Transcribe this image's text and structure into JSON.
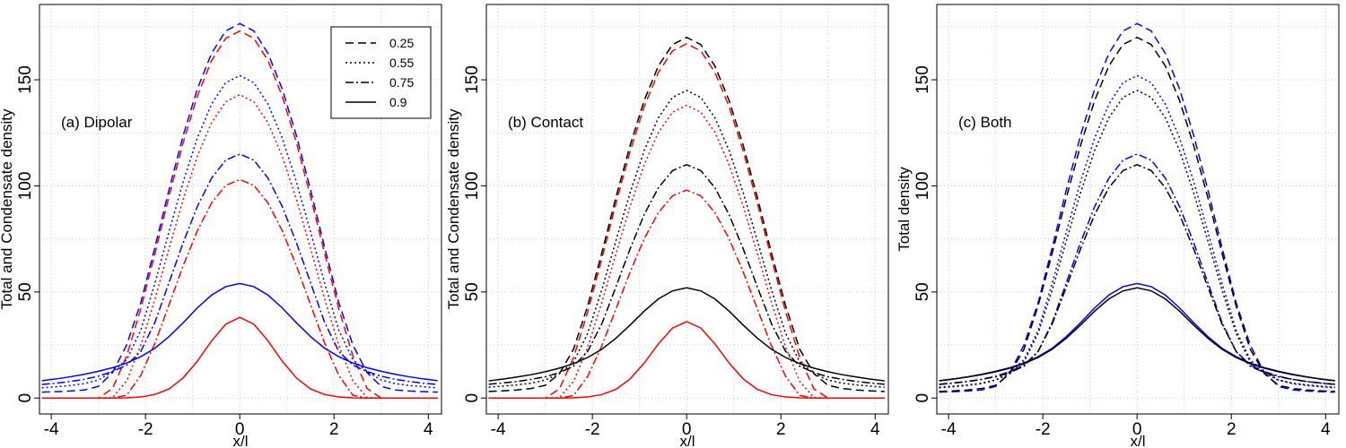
{
  "chart_data": [
    {
      "type": "line",
      "annotation": "(a) Dipolar",
      "ylabel": "Total and Condensate density",
      "xlabel": "x/l",
      "x": [
        -4.2,
        -3.9,
        -3.6,
        -3.3,
        -3.0,
        -2.7,
        -2.4,
        -2.1,
        -1.8,
        -1.5,
        -1.2,
        -0.9,
        -0.6,
        -0.3,
        0,
        0.3,
        0.6,
        0.9,
        1.2,
        1.5,
        1.8,
        2.1,
        2.4,
        2.7,
        3.0,
        3.3,
        3.6,
        3.9,
        4.2
      ],
      "xlim": [
        -4.25,
        4.28
      ],
      "ylim": [
        -7.5,
        185.5
      ],
      "xticks": [
        -4,
        -2,
        0,
        2,
        4
      ],
      "yticks": [
        0,
        50,
        100,
        150
      ],
      "xgrid": [
        -4,
        -3,
        -2,
        -1,
        0,
        1,
        2,
        3,
        4
      ],
      "ygrid": [
        0,
        25,
        50,
        75,
        100,
        125,
        150,
        175
      ],
      "legend": {
        "corner": "top right",
        "entries": [
          {
            "label": "0.25",
            "dash": "dashed",
            "color": "#000000"
          },
          {
            "label": "0.55",
            "dash": "dotted",
            "color": "#000000"
          },
          {
            "label": "0.75",
            "dash": "dashdot",
            "color": "#000000"
          },
          {
            "label": "0.9",
            "dash": "solid",
            "color": "#000000"
          }
        ]
      },
      "series": [
        {
          "color": "#ff0000",
          "dash": "dashed",
          "values": [
            0,
            0,
            0,
            0,
            0,
            4.5,
            19.8,
            42.1,
            68.1,
            95.1,
            120.5,
            142.3,
            159.0,
            169.5,
            173,
            169.5,
            159.0,
            142.3,
            120.5,
            95.1,
            68.1,
            42.1,
            19.8,
            4.5,
            0,
            0,
            0,
            0,
            0
          ]
        },
        {
          "color": "#ff0000",
          "dash": "dotted",
          "values": [
            0,
            0,
            0,
            0,
            0,
            0.2,
            8.1,
            24.9,
            46.7,
            70.6,
            93.7,
            114.0,
            129.7,
            139.6,
            143,
            139.6,
            129.7,
            114.0,
            93.7,
            70.6,
            46.7,
            24.9,
            8.1,
            0.2,
            0,
            0,
            0,
            0,
            0
          ]
        },
        {
          "color": "#ff0000",
          "dash": "dashdot",
          "values": [
            0,
            0,
            0,
            0,
            0,
            0,
            1.3,
            10.7,
            25.9,
            44.1,
            62.4,
            78.9,
            91.9,
            100.2,
            103,
            100.2,
            91.9,
            78.9,
            62.4,
            44.1,
            25.9,
            10.7,
            1.3,
            0,
            0,
            0,
            0,
            0,
            0
          ]
        },
        {
          "color": "#ff0000",
          "dash": "solid",
          "values": [
            0,
            0,
            0,
            0,
            0,
            0,
            0.1,
            0.5,
            1.7,
            4.3,
            9.5,
            17.4,
            26.9,
            34.8,
            38,
            34.8,
            26.9,
            17.4,
            9.5,
            4.3,
            1.7,
            0.5,
            0.1,
            0,
            0,
            0,
            0,
            0,
            0
          ]
        },
        {
          "color": "#0000ff",
          "dash": "dashed",
          "values": [
            2.8,
            3.0,
            3.3,
            3.8,
            5.5,
            12,
            25,
            45.0,
            71.1,
            98.3,
            123.8,
            145.7,
            162.4,
            173.0,
            176.5,
            173.0,
            162.4,
            145.7,
            123.8,
            98.3,
            71.1,
            45.0,
            25,
            12,
            5.5,
            3.8,
            3.3,
            3.0,
            2.8
          ]
        },
        {
          "color": "#0000ff",
          "dash": "dotted",
          "values": [
            4.8,
            5.3,
            5.9,
            6.8,
            8.5,
            12.5,
            18,
            32.0,
            54.2,
            78.5,
            102.0,
            122.6,
            138.5,
            148.6,
            152,
            148.6,
            138.5,
            122.6,
            102.0,
            78.5,
            54.2,
            32.0,
            18,
            12.5,
            8.5,
            6.8,
            5.9,
            5.3,
            4.8
          ]
        },
        {
          "color": "#0000ff",
          "dash": "dashdot",
          "values": [
            6.4,
            7.0,
            7.8,
            8.8,
            10.3,
            12.5,
            15.5,
            22,
            35.7,
            54.5,
            73.3,
            90.3,
            103.6,
            112.1,
            115,
            112.1,
            103.6,
            90.3,
            73.3,
            54.5,
            35.7,
            22,
            15.5,
            12.5,
            10.3,
            8.8,
            7.8,
            7.0,
            6.4
          ]
        },
        {
          "color": "#0000ff",
          "dash": "solid",
          "values": [
            8.2,
            9.0,
            10.0,
            11.2,
            12.6,
            14.3,
            16.5,
            19.5,
            23.5,
            29,
            35.5,
            42.5,
            48.5,
            52.5,
            54,
            52.5,
            48.5,
            42.5,
            35.5,
            29,
            23.5,
            19.5,
            16.5,
            14.3,
            12.6,
            11.2,
            10.0,
            9.0,
            8.2
          ]
        }
      ]
    },
    {
      "type": "line",
      "annotation": "(b) Contact",
      "ylabel": "Total and Condensate density",
      "xlabel": "x/l",
      "x": [
        -4.2,
        -3.9,
        -3.6,
        -3.3,
        -3.0,
        -2.7,
        -2.4,
        -2.1,
        -1.8,
        -1.5,
        -1.2,
        -0.9,
        -0.6,
        -0.3,
        0,
        0.3,
        0.6,
        0.9,
        1.2,
        1.5,
        1.8,
        2.1,
        2.4,
        2.7,
        3.0,
        3.3,
        3.6,
        3.9,
        4.2
      ],
      "xlim": [
        -4.25,
        4.28
      ],
      "ylim": [
        -7.5,
        185.5
      ],
      "xticks": [
        -4,
        -2,
        0,
        2,
        4
      ],
      "yticks": [
        0,
        50,
        100,
        150
      ],
      "xgrid": [
        -4,
        -3,
        -2,
        -1,
        0,
        1,
        2,
        3,
        4
      ],
      "ygrid": [
        0,
        25,
        50,
        75,
        100,
        125,
        150,
        175
      ],
      "series": [
        {
          "color": "#ff0000",
          "dash": "dashed",
          "values": [
            0,
            0,
            0,
            0,
            0,
            4.3,
            19.1,
            40.6,
            65.7,
            91.8,
            116.3,
            137.4,
            153.5,
            163.6,
            167,
            163.6,
            153.5,
            137.4,
            116.3,
            91.8,
            65.7,
            40.6,
            19.1,
            4.3,
            0,
            0,
            0,
            0,
            0
          ]
        },
        {
          "color": "#ff0000",
          "dash": "dotted",
          "values": [
            0,
            0,
            0,
            0,
            0,
            0.2,
            7.8,
            24.0,
            45.1,
            68.1,
            90.4,
            110.0,
            125.2,
            134.7,
            138,
            134.7,
            125.2,
            110.0,
            90.4,
            68.1,
            45.1,
            24.0,
            7.8,
            0.2,
            0,
            0,
            0,
            0,
            0
          ]
        },
        {
          "color": "#ff0000",
          "dash": "dashdot",
          "values": [
            0,
            0,
            0,
            0,
            0,
            0,
            1.2,
            10.2,
            24.6,
            42.0,
            59.4,
            75.1,
            87.4,
            95.3,
            98,
            95.3,
            87.4,
            75.1,
            59.4,
            42.0,
            24.6,
            10.2,
            1.2,
            0,
            0,
            0,
            0,
            0,
            0
          ]
        },
        {
          "color": "#ff0000",
          "dash": "solid",
          "values": [
            0,
            0,
            0,
            0,
            0,
            0,
            0.1,
            0.5,
            1.6,
            4.1,
            9.0,
            16.5,
            25.5,
            33.0,
            36,
            33.0,
            25.5,
            16.5,
            9.0,
            4.1,
            1.6,
            0.5,
            0.1,
            0,
            0,
            0,
            0,
            0,
            0
          ]
        },
        {
          "color": "#000000",
          "dash": "dashed",
          "values": [
            3.1,
            3.4,
            3.8,
            4.5,
            6,
            11.5,
            23,
            43.5,
            68.4,
            94.6,
            119.1,
            140.3,
            156.5,
            166.6,
            170,
            166.6,
            156.5,
            140.3,
            119.1,
            94.6,
            68.4,
            43.5,
            23,
            11.5,
            6,
            4.5,
            3.8,
            3.4,
            3.1
          ]
        },
        {
          "color": "#000000",
          "dash": "dotted",
          "values": [
            5.1,
            5.6,
            6.2,
            7,
            8.5,
            11.5,
            17,
            30.5,
            51,
            74.2,
            96.8,
            116.7,
            132.1,
            141.7,
            145,
            141.7,
            132.1,
            116.7,
            96.8,
            74.2,
            51,
            30.5,
            17,
            11.5,
            8.5,
            7,
            6.2,
            5.6,
            5.1
          ]
        },
        {
          "color": "#000000",
          "dash": "dashdot",
          "values": [
            6.5,
            7.1,
            7.8,
            8.8,
            10,
            12,
            15,
            22,
            35,
            52.4,
            70.3,
            86.5,
            99.1,
            107.2,
            110,
            107.2,
            99.1,
            86.5,
            70.3,
            52.4,
            35,
            22,
            15,
            12,
            10,
            8.8,
            7.8,
            7.1,
            6.5
          ]
        },
        {
          "color": "#000000",
          "dash": "solid",
          "values": [
            8.1,
            8.9,
            9.9,
            11.0,
            12.4,
            14.1,
            16.2,
            19.1,
            23,
            28.2,
            34.4,
            41,
            46.7,
            50.5,
            52,
            50.5,
            46.7,
            41,
            34.4,
            28.2,
            23,
            19.1,
            16.2,
            14.1,
            12.4,
            11.0,
            9.9,
            8.9,
            8.1
          ]
        }
      ]
    },
    {
      "type": "line",
      "annotation": "(c) Both",
      "ylabel": "Total density",
      "xlabel": "x/l",
      "x": [
        -4.2,
        -3.9,
        -3.6,
        -3.3,
        -3.0,
        -2.7,
        -2.4,
        -2.1,
        -1.8,
        -1.5,
        -1.2,
        -0.9,
        -0.6,
        -0.3,
        0,
        0.3,
        0.6,
        0.9,
        1.2,
        1.5,
        1.8,
        2.1,
        2.4,
        2.7,
        3.0,
        3.3,
        3.6,
        3.9,
        4.2
      ],
      "xlim": [
        -4.25,
        4.28
      ],
      "ylim": [
        -7.5,
        185.5
      ],
      "xticks": [
        -4,
        -2,
        0,
        2,
        4
      ],
      "yticks": [
        0,
        50,
        100,
        150
      ],
      "xgrid": [
        -4,
        -3,
        -2,
        -1,
        0,
        1,
        2,
        3,
        4
      ],
      "ygrid": [
        0,
        25,
        50,
        75,
        100,
        125,
        150,
        175
      ],
      "series": [
        {
          "color": "#0000ff",
          "dash": "dashed",
          "values": [
            2.8,
            3.0,
            3.3,
            3.8,
            5.5,
            12,
            25,
            45.0,
            71.1,
            98.3,
            123.8,
            145.7,
            162.4,
            173.0,
            176.5,
            173.0,
            162.4,
            145.7,
            123.8,
            98.3,
            71.1,
            45.0,
            25,
            12,
            5.5,
            3.8,
            3.3,
            3.0,
            2.8
          ]
        },
        {
          "color": "#0000ff",
          "dash": "dotted",
          "values": [
            4.8,
            5.3,
            5.9,
            6.8,
            8.5,
            12.5,
            18,
            32.0,
            54.2,
            78.5,
            102.0,
            122.6,
            138.5,
            148.6,
            152,
            148.6,
            138.5,
            122.6,
            102.0,
            78.5,
            54.2,
            32.0,
            18,
            12.5,
            8.5,
            6.8,
            5.9,
            5.3,
            4.8
          ]
        },
        {
          "color": "#0000ff",
          "dash": "dashdot",
          "values": [
            6.4,
            7.0,
            7.8,
            8.8,
            10.3,
            12.5,
            15.5,
            22,
            35.7,
            54.5,
            73.3,
            90.3,
            103.6,
            112.1,
            115,
            112.1,
            103.6,
            90.3,
            73.3,
            54.5,
            35.7,
            22,
            15.5,
            12.5,
            10.3,
            8.8,
            7.8,
            7.0,
            6.4
          ]
        },
        {
          "color": "#0000ff",
          "dash": "solid",
          "values": [
            8.2,
            9.0,
            10.0,
            11.2,
            12.6,
            14.3,
            16.5,
            19.5,
            23.5,
            29,
            35.5,
            42.5,
            48.5,
            52.5,
            54,
            52.5,
            48.5,
            42.5,
            35.5,
            29,
            23.5,
            19.5,
            16.5,
            14.3,
            12.6,
            11.2,
            10.0,
            9.0,
            8.2
          ]
        },
        {
          "color": "#000000",
          "dash": "dashed",
          "values": [
            3.1,
            3.4,
            3.8,
            4.5,
            6,
            11.5,
            23,
            43.5,
            68.4,
            94.6,
            119.1,
            140.3,
            156.5,
            166.6,
            170,
            166.6,
            156.5,
            140.3,
            119.1,
            94.6,
            68.4,
            43.5,
            23,
            11.5,
            6,
            4.5,
            3.8,
            3.4,
            3.1
          ]
        },
        {
          "color": "#000000",
          "dash": "dotted",
          "values": [
            5.1,
            5.6,
            6.2,
            7,
            8.5,
            11.5,
            17,
            30.5,
            51,
            74.2,
            96.8,
            116.7,
            132.1,
            141.7,
            145,
            141.7,
            132.1,
            116.7,
            96.8,
            74.2,
            51,
            30.5,
            17,
            11.5,
            8.5,
            7,
            6.2,
            5.6,
            5.1
          ]
        },
        {
          "color": "#000000",
          "dash": "dashdot",
          "values": [
            6.5,
            7.1,
            7.8,
            8.8,
            10,
            12,
            15,
            22,
            35,
            52.4,
            70.3,
            86.5,
            99.1,
            107.2,
            110,
            107.2,
            99.1,
            86.5,
            70.3,
            52.4,
            35,
            22,
            15,
            12,
            10,
            8.8,
            7.8,
            7.1,
            6.5
          ]
        },
        {
          "color": "#000000",
          "dash": "solid",
          "values": [
            8.1,
            8.9,
            9.9,
            11.0,
            12.4,
            14.1,
            16.2,
            19.1,
            23,
            28.2,
            34.4,
            41,
            46.7,
            50.5,
            52,
            50.5,
            46.7,
            41,
            34.4,
            28.2,
            23,
            19.1,
            16.2,
            14.1,
            12.4,
            11.0,
            9.9,
            8.9,
            8.1
          ]
        }
      ]
    }
  ]
}
